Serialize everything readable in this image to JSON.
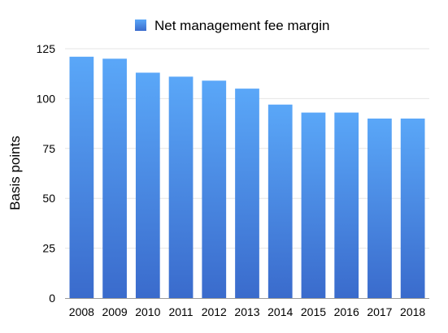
{
  "chart_data": {
    "type": "bar",
    "categories": [
      "2008",
      "2009",
      "2010",
      "2011",
      "2012",
      "2013",
      "2014",
      "2015",
      "2016",
      "2017",
      "2018"
    ],
    "series": [
      {
        "name": "Net management fee margin",
        "values": [
          121,
          120,
          113,
          111,
          109,
          105,
          97,
          93,
          93,
          90,
          90
        ]
      }
    ],
    "ylabel": "Basis points",
    "xlabel": "",
    "ylim": [
      0,
      125
    ],
    "yticks": [
      0,
      25,
      50,
      75,
      100,
      125
    ],
    "grid": true,
    "legend_position": "top-center",
    "colors": {
      "bar_top": "#5aa7f8",
      "bar_bottom": "#3a6bcc",
      "legend_swatch": "#4a8ae6"
    }
  }
}
